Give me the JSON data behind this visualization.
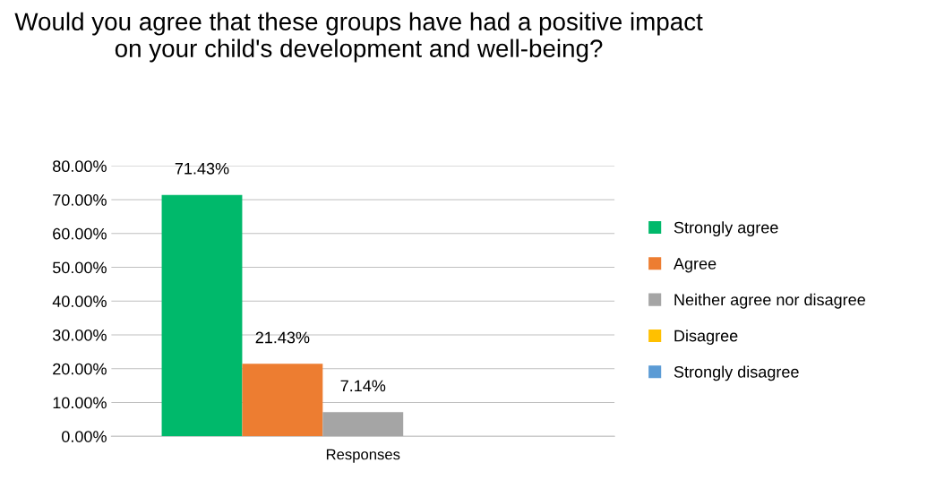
{
  "chart_data": {
    "type": "bar",
    "title": "Would you agree that these groups have had a positive impact on your child's development and well-being?",
    "categories": [
      "Responses"
    ],
    "series": [
      {
        "name": "Strongly agree",
        "color": "#00b96b",
        "values": [
          71.43
        ],
        "value_labels": [
          "71.43%"
        ]
      },
      {
        "name": "Agree",
        "color": "#ed7d31",
        "values": [
          21.43
        ],
        "value_labels": [
          "21.43%"
        ]
      },
      {
        "name": "Neither agree nor disagree",
        "color": "#a5a5a5",
        "values": [
          7.14
        ],
        "value_labels": [
          "7.14%"
        ]
      },
      {
        "name": "Disagree",
        "color": "#ffc000",
        "values": [
          0
        ],
        "value_labels": [
          null
        ]
      },
      {
        "name": "Strongly disagree",
        "color": "#5b9bd5",
        "values": [
          0
        ],
        "value_labels": [
          null
        ]
      }
    ],
    "ylim": [
      0,
      80
    ],
    "yticks": [
      {
        "value": 0,
        "label": "0.00%"
      },
      {
        "value": 10,
        "label": "10.00%"
      },
      {
        "value": 20,
        "label": "20.00%"
      },
      {
        "value": 30,
        "label": "30.00%"
      },
      {
        "value": 40,
        "label": "40.00%"
      },
      {
        "value": 50,
        "label": "50.00%"
      },
      {
        "value": 60,
        "label": "60.00%"
      },
      {
        "value": 70,
        "label": "70.00%"
      },
      {
        "value": 80,
        "label": "80.00%"
      }
    ],
    "grid": "y",
    "legend": "right"
  }
}
